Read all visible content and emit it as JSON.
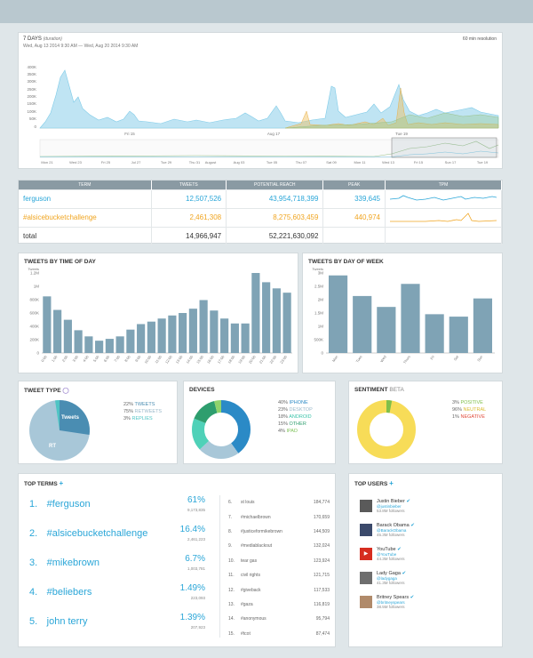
{
  "header": {
    "range": "7 DAYS",
    "range_sub": "(duration)",
    "dates": "Wed, Aug 13 2014 9:30 AM — Wed, Aug 20 2014 9:30 AM",
    "resolution": "60 min resolution"
  },
  "timeline": {
    "y_ticks": [
      "400K",
      "350K",
      "300K",
      "250K",
      "200K",
      "150K",
      "100K",
      "50K",
      "0"
    ],
    "x_ticks": [
      "Fri 15",
      "Aug 17",
      "Tue 19"
    ],
    "nav_ticks": [
      "Mon 21",
      "Wed 23",
      "Fri 25",
      "Jul 27",
      "Tue 29",
      "Thu 31",
      "August",
      "Aug 03",
      "Tue 05",
      "Thu 07",
      "Sat 09",
      "Mon 11",
      "Wed 13",
      "Fri 15",
      "Sun 17",
      "Tue 19"
    ]
  },
  "terms_table": {
    "headers": [
      "TERM",
      "TWEETS",
      "POTENTIAL REACH",
      "PEAK",
      "TPM"
    ],
    "rows": [
      {
        "term": "ferguson",
        "tweets": "12,507,526",
        "reach": "43,954,718,399",
        "peak": "339,645"
      },
      {
        "term": "#alsicebucketchallenge",
        "tweets": "2,461,308",
        "reach": "8,275,603,459",
        "peak": "440,974"
      },
      {
        "term": "total",
        "tweets": "14,966,947",
        "reach": "52,221,630,092",
        "peak": ""
      }
    ]
  },
  "time_of_day": {
    "title": "TWEETS BY TIME OF DAY",
    "ylabel": "Tweets",
    "y_ticks": [
      "1.2M",
      "1M",
      "800K",
      "600K",
      "400K",
      "200K",
      "0"
    ]
  },
  "day_of_week": {
    "title": "TWEETS BY DAY OF WEEK",
    "ylabel": "Tweets",
    "y_ticks": [
      "3M",
      "2.5M",
      "2M",
      "1.5M",
      "1M",
      "500K",
      "0"
    ]
  },
  "tweet_type": {
    "title": "TWEET TYPE",
    "slice_labels": [
      "Tweets",
      "RT"
    ],
    "legend": [
      {
        "pct": "22%",
        "label": "TWEETS",
        "color": "#4a8db2"
      },
      {
        "pct": "75%",
        "label": "RETWEETS",
        "color": "#a8c7d8"
      },
      {
        "pct": "3%",
        "label": "REPLIES",
        "color": "#4fc4c4"
      }
    ]
  },
  "devices": {
    "title": "DEVICES",
    "legend": [
      {
        "pct": "40%",
        "label": "IPHONE",
        "color": "#2b8ac6"
      },
      {
        "pct": "23%",
        "label": "DESKTOP",
        "color": "#a8c7d8"
      },
      {
        "pct": "18%",
        "label": "ANDROID",
        "color": "#4fd1b8"
      },
      {
        "pct": "15%",
        "label": "OTHER",
        "color": "#2e9e6e"
      },
      {
        "pct": "4%",
        "label": "IPAD",
        "color": "#8fd36b"
      }
    ]
  },
  "sentiment": {
    "title": "SENTIMENT",
    "badge": "BETA",
    "legend": [
      {
        "pct": "3%",
        "label": "POSITIVE",
        "color": "#7fbf4a"
      },
      {
        "pct": "96%",
        "label": "NEUTRAL",
        "color": "#f7dc58"
      },
      {
        "pct": "1%",
        "label": "NEGATIVE",
        "color": "#e04a3a"
      }
    ]
  },
  "top_terms": {
    "title": "TOP TERMS",
    "add": "+",
    "main": [
      {
        "rank": "1.",
        "term": "#ferguson",
        "pct": "61%",
        "count": "9,173,835"
      },
      {
        "rank": "2.",
        "term": "#alsicebucketchallenge",
        "pct": "16.4%",
        "count": "2,461,223"
      },
      {
        "rank": "3.",
        "term": "#mikebrown",
        "pct": "6.7%",
        "count": "1,003,781"
      },
      {
        "rank": "4.",
        "term": "#beliebers",
        "pct": "1.49%",
        "count": "223,093"
      },
      {
        "rank": "5.",
        "term": "john terry",
        "pct": "1.39%",
        "count": "207,923"
      }
    ],
    "more": [
      {
        "rank": "6.",
        "term": "st louis",
        "count": "184,774"
      },
      {
        "rank": "7.",
        "term": "#michaelbrown",
        "count": "170,659"
      },
      {
        "rank": "8.",
        "term": "#justiceformikebrown",
        "count": "144,509"
      },
      {
        "rank": "9.",
        "term": "#mediablackout",
        "count": "132,024"
      },
      {
        "rank": "10.",
        "term": "tear gas",
        "count": "123,924"
      },
      {
        "rank": "11.",
        "term": "civil rights",
        "count": "121,715"
      },
      {
        "rank": "12.",
        "term": "#giveback",
        "count": "117,533"
      },
      {
        "rank": "13.",
        "term": "#gaza",
        "count": "116,819"
      },
      {
        "rank": "14.",
        "term": "#anonymous",
        "count": "95,794"
      },
      {
        "rank": "15.",
        "term": "#tcot",
        "count": "87,474"
      }
    ]
  },
  "top_users": {
    "title": "TOP USERS",
    "add": "+",
    "users": [
      {
        "name": "Justin Bieber",
        "handle": "@justinbieber",
        "followers": "53.8M followers",
        "avatar_color": "#5a5a5a"
      },
      {
        "name": "Barack Obama",
        "handle": "@BarackObama",
        "followers": "45.3M followers",
        "avatar_color": "#3b4a6b"
      },
      {
        "name": "YouTube",
        "handle": "@YouTube",
        "followers": "44.3M followers",
        "avatar_color": "#d62d20"
      },
      {
        "name": "Lady Gaga",
        "handle": "@ladygaga",
        "followers": "41.3M followers",
        "avatar_color": "#6e6e6e"
      },
      {
        "name": "Britney Spears",
        "handle": "@britneyspears",
        "followers": "38.5M followers",
        "avatar_color": "#b08a6a"
      }
    ]
  },
  "chart_data": [
    {
      "type": "bar",
      "title": "TWEETS BY TIME OF DAY",
      "ylabel": "Tweets",
      "categories": [
        "0:00",
        "1:00",
        "2:00",
        "3:00",
        "4:00",
        "5:00",
        "6:00",
        "7:00",
        "8:00",
        "9:00",
        "10:00",
        "11:00",
        "12:00",
        "13:00",
        "14:00",
        "15:00",
        "16:00",
        "17:00",
        "18:00",
        "19:00",
        "20:00",
        "21:00",
        "22:00",
        "23:00"
      ],
      "values": [
        920000,
        700000,
        540000,
        370000,
        270000,
        200000,
        230000,
        270000,
        380000,
        470000,
        510000,
        560000,
        610000,
        650000,
        720000,
        860000,
        690000,
        560000,
        480000,
        480000,
        1300000,
        1150000,
        1050000,
        980000
      ],
      "ylim": [
        0,
        1300000
      ]
    },
    {
      "type": "bar",
      "title": "TWEETS BY DAY OF WEEK",
      "ylabel": "Tweets",
      "categories": [
        "Mon",
        "Tues",
        "Wed",
        "Thurs",
        "Fri",
        "Sat",
        "Sun"
      ],
      "values": [
        3200000,
        2350000,
        1900000,
        2850000,
        1600000,
        1500000,
        2250000
      ],
      "ylim": [
        0,
        3300000
      ]
    }
  ]
}
